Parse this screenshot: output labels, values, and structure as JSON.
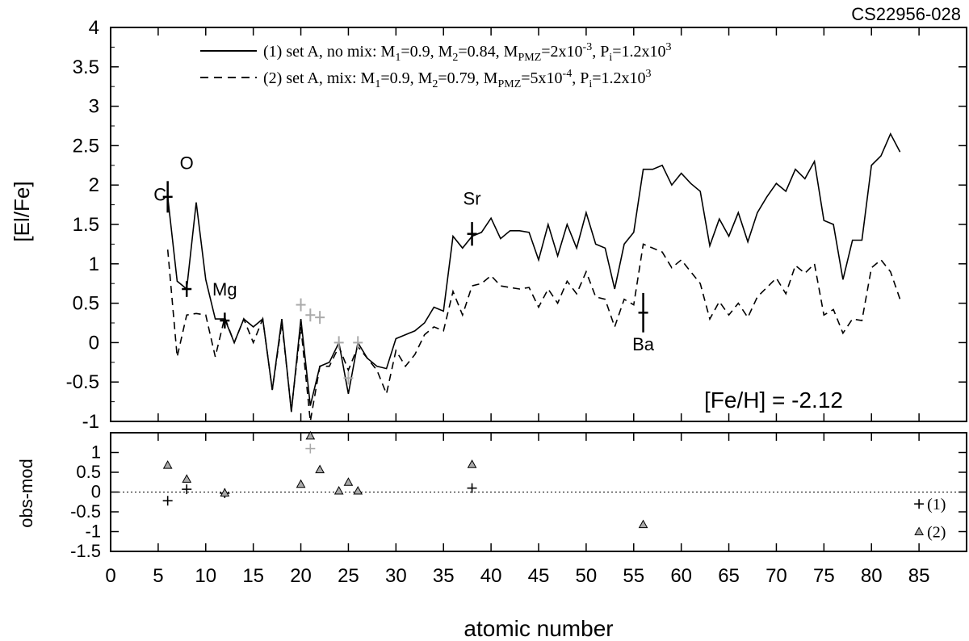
{
  "title": "CS22956-028",
  "chart_data": [
    {
      "type": "line",
      "panel": "top",
      "ylabel": "[El/Fe]",
      "xlim": [
        0,
        90
      ],
      "ylim": [
        -1,
        4
      ],
      "yticks": [
        -1,
        -0.5,
        0,
        0.5,
        1,
        1.5,
        2,
        2.5,
        3,
        3.5,
        4
      ],
      "ytick_labels": [
        "-1",
        "-0.5",
        "0",
        "0.5",
        "1",
        "1.5",
        "2",
        "2.5",
        "3",
        "3.5",
        "4"
      ],
      "grid": false,
      "legend_position": "top",
      "annotation": "[Fe/H] = -2.12",
      "series": [
        {
          "name": "(1) set A, no mix: M1=0.9, M2=0.84, MPMZ=2x10-3, Pi=1.2x103",
          "style": "solid",
          "x": [
            6,
            7,
            8,
            9,
            10,
            11,
            12,
            13,
            14,
            15,
            16,
            17,
            18,
            19,
            20,
            21,
            22,
            23,
            24,
            25,
            26,
            27,
            28,
            29,
            30,
            31,
            32,
            33,
            34,
            35,
            36,
            37,
            38,
            39,
            40,
            41,
            42,
            43,
            44,
            45,
            46,
            47,
            48,
            49,
            50,
            51,
            52,
            53,
            54,
            55,
            56,
            57,
            58,
            59,
            60,
            61,
            62,
            63,
            64,
            65,
            66,
            67,
            68,
            69,
            70,
            71,
            72,
            73,
            74,
            75,
            76,
            77,
            78,
            79,
            80,
            81,
            82,
            83
          ],
          "y": [
            1.85,
            0.78,
            0.68,
            1.78,
            0.8,
            0.3,
            0.3,
            0.0,
            0.3,
            0.2,
            0.3,
            -0.6,
            0.3,
            -0.88,
            0.3,
            -0.8,
            -0.3,
            -0.25,
            0.0,
            -0.65,
            0.0,
            -0.2,
            -0.3,
            -0.33,
            0.05,
            0.1,
            0.15,
            0.25,
            0.45,
            0.4,
            1.35,
            1.2,
            1.35,
            1.4,
            1.58,
            1.32,
            1.42,
            1.42,
            1.4,
            1.05,
            1.5,
            1.1,
            1.5,
            1.2,
            1.65,
            1.25,
            1.2,
            0.68,
            1.25,
            1.4,
            2.2,
            2.2,
            2.25,
            2.0,
            2.15,
            2.02,
            1.92,
            1.23,
            1.57,
            1.35,
            1.65,
            1.28,
            1.65,
            1.85,
            2.02,
            1.92,
            2.2,
            2.08,
            2.3,
            1.55,
            1.5,
            0.8,
            1.3,
            1.3,
            2.25,
            2.37,
            2.65,
            2.42
          ]
        },
        {
          "name": "(2) set A, mix: M1=0.9, M2=0.79, MPMZ=5x10-4, Pi=1.2x103",
          "style": "dashed",
          "x": [
            6,
            7,
            8,
            9,
            10,
            11,
            12,
            13,
            14,
            15,
            16,
            17,
            18,
            19,
            20,
            21,
            22,
            23,
            24,
            25,
            26,
            27,
            28,
            29,
            30,
            31,
            32,
            33,
            34,
            35,
            36,
            37,
            38,
            39,
            40,
            41,
            42,
            43,
            44,
            45,
            46,
            47,
            48,
            49,
            50,
            51,
            52,
            53,
            54,
            55,
            56,
            57,
            58,
            59,
            60,
            61,
            62,
            63,
            64,
            65,
            66,
            67,
            68,
            69,
            70,
            71,
            72,
            73,
            74,
            75,
            76,
            77,
            78,
            79,
            80,
            81,
            82,
            83
          ],
          "y": [
            1.18,
            -0.18,
            0.35,
            0.37,
            0.35,
            -0.18,
            0.32,
            0.0,
            0.3,
            0.0,
            0.3,
            -0.6,
            0.25,
            -0.85,
            0.2,
            -1.0,
            -0.3,
            -0.3,
            -0.05,
            -0.35,
            -0.05,
            -0.2,
            -0.35,
            -0.65,
            -0.1,
            -0.3,
            -0.15,
            0.1,
            0.2,
            0.15,
            0.65,
            0.35,
            0.72,
            0.75,
            0.85,
            0.72,
            0.7,
            0.68,
            0.7,
            0.45,
            0.68,
            0.5,
            0.78,
            0.62,
            0.9,
            0.58,
            0.55,
            0.2,
            0.55,
            0.48,
            1.25,
            1.2,
            1.15,
            0.95,
            1.05,
            0.9,
            0.75,
            0.3,
            0.52,
            0.35,
            0.5,
            0.32,
            0.58,
            0.7,
            0.82,
            0.62,
            0.98,
            0.88,
            1.0,
            0.35,
            0.42,
            0.12,
            0.3,
            0.28,
            0.95,
            1.05,
            0.9,
            0.55
          ]
        }
      ],
      "observations": [
        {
          "x": 6,
          "y": 1.85,
          "err": 0.2
        },
        {
          "x": 8,
          "y": 0.68,
          "err": 0.1
        },
        {
          "x": 12,
          "y": 0.28,
          "err": 0.1
        },
        {
          "x": 38,
          "y": 1.38,
          "err": 0.15
        },
        {
          "x": 56,
          "y": 0.38,
          "err": 0.25
        }
      ],
      "observations_grey": [
        {
          "x": 20,
          "y": 0.48
        },
        {
          "x": 21,
          "y": 0.35
        },
        {
          "x": 22,
          "y": 0.32
        },
        {
          "x": 24,
          "y": 0.0
        },
        {
          "x": 25,
          "y": -0.45
        },
        {
          "x": 26,
          "y": 0.0
        }
      ],
      "element_labels": [
        {
          "text": "C",
          "x": 5.2,
          "y": 1.8
        },
        {
          "text": "O",
          "x": 8,
          "y": 2.2
        },
        {
          "text": "Mg",
          "x": 12,
          "y": 0.6
        },
        {
          "text": "Sr",
          "x": 38,
          "y": 1.75
        },
        {
          "text": "Ba",
          "x": 56,
          "y": -0.1
        }
      ]
    },
    {
      "type": "scatter",
      "panel": "bottom",
      "xlabel": "atomic number",
      "ylabel": "obs-mod",
      "xlim": [
        0,
        90
      ],
      "ylim": [
        -1.5,
        1.5
      ],
      "xticks": [
        0,
        5,
        10,
        15,
        20,
        25,
        30,
        35,
        40,
        45,
        50,
        55,
        60,
        65,
        70,
        75,
        80,
        85
      ],
      "xtick_labels": [
        "0",
        "5",
        "10",
        "15",
        "20",
        "25",
        "30",
        "35",
        "40",
        "45",
        "50",
        "55",
        "60",
        "65",
        "70",
        "75",
        "80",
        "85"
      ],
      "yticks": [
        -1.5,
        -1,
        -0.5,
        0,
        0.5,
        1
      ],
      "ytick_labels": [
        "-1.5",
        "-1",
        "-0.5",
        "0",
        "0.5",
        "1"
      ],
      "zero_line": true,
      "legend_position": "bottom-right",
      "series": [
        {
          "name": "(1)",
          "marker": "plus",
          "points": [
            {
              "x": 6,
              "y": -0.22
            },
            {
              "x": 8,
              "y": 0.07
            },
            {
              "x": 12,
              "y": -0.03
            },
            {
              "x": 38,
              "y": 0.1
            }
          ]
        },
        {
          "name": "(2)",
          "marker": "triangle",
          "points": [
            {
              "x": 6,
              "y": 0.68
            },
            {
              "x": 8,
              "y": 0.33
            },
            {
              "x": 12,
              "y": -0.02
            },
            {
              "x": 20,
              "y": 0.2
            },
            {
              "x": 21,
              "y": 1.42
            },
            {
              "x": 22,
              "y": 0.57
            },
            {
              "x": 24,
              "y": 0.03
            },
            {
              "x": 25,
              "y": 0.25
            },
            {
              "x": 26,
              "y": 0.03
            },
            {
              "x": 38,
              "y": 0.7
            },
            {
              "x": 56,
              "y": -0.82
            }
          ]
        }
      ],
      "grey_points": [
        {
          "x": 21,
          "y": 1.1
        }
      ]
    }
  ]
}
